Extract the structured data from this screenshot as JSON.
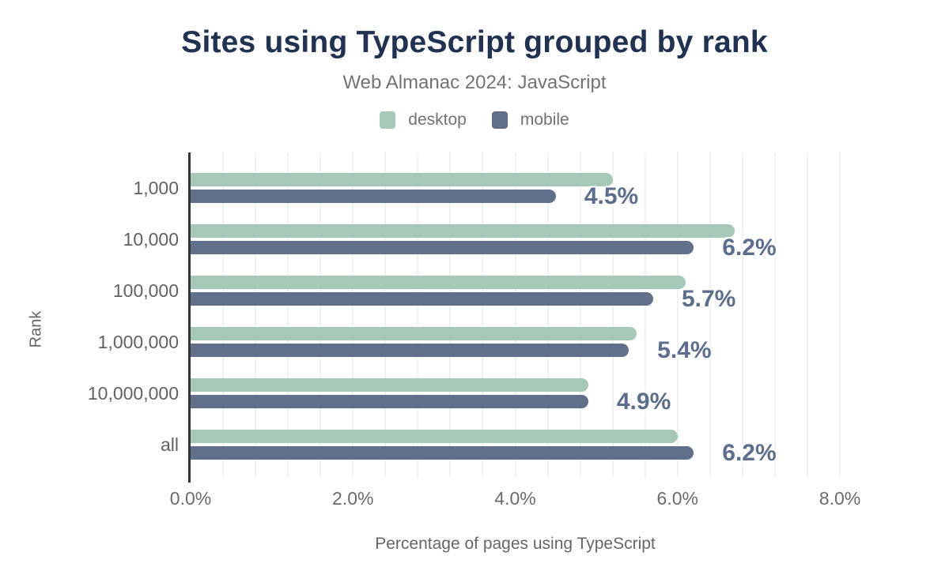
{
  "header": {
    "title": "Sites using TypeScript grouped by rank",
    "subtitle": "Web Almanac 2024: JavaScript"
  },
  "legend": {
    "items": [
      {
        "label": "desktop",
        "color": "#a5c8b7"
      },
      {
        "label": "mobile",
        "color": "#5f708b"
      }
    ]
  },
  "chart_data": {
    "type": "bar",
    "orientation": "horizontal",
    "title": "Sites using TypeScript grouped by rank",
    "subtitle": "Web Almanac 2024: JavaScript",
    "xlabel": "Percentage of pages using TypeScript",
    "ylabel": "Rank",
    "xlim": [
      0,
      8
    ],
    "x_ticks": [
      "0.0%",
      "2.0%",
      "4.0%",
      "6.0%",
      "8.0%"
    ],
    "x_tick_values": [
      0,
      2,
      4,
      6,
      8
    ],
    "grid": {
      "show": true,
      "minor_step_percent": 0.4
    },
    "legend_position": "top",
    "categories": [
      "1,000",
      "10,000",
      "100,000",
      "1,000,000",
      "10,000,000",
      "all"
    ],
    "series": [
      {
        "name": "desktop",
        "color": "#a5c8b7",
        "values": [
          5.2,
          6.7,
          6.1,
          5.5,
          4.9,
          6.0
        ]
      },
      {
        "name": "mobile",
        "color": "#5f708b",
        "values": [
          4.5,
          6.2,
          5.7,
          5.4,
          4.9,
          6.2
        ],
        "data_labels": [
          "4.5%",
          "6.2%",
          "5.7%",
          "5.4%",
          "4.9%",
          "6.2%"
        ]
      }
    ],
    "colors": {
      "title": "#203253",
      "subtitle": "#737373",
      "axis_text": "#6b6b6b",
      "category_text": "#626262",
      "data_label": "#5b6e8f",
      "axis_line": "#333333",
      "gridline": "#f1f1f1"
    }
  }
}
